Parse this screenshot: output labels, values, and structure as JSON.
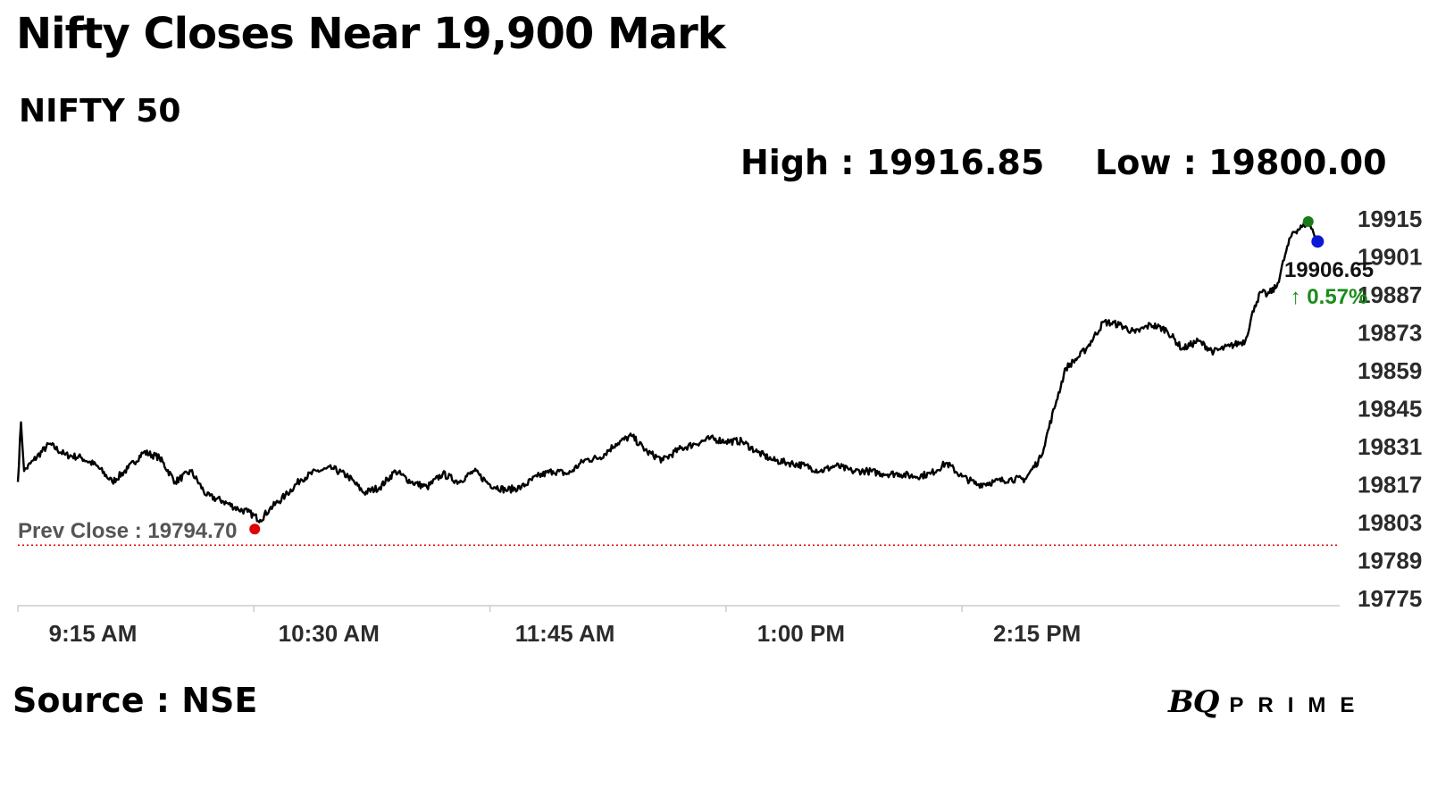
{
  "header": {
    "title": "Nifty Closes Near 19,900 Mark",
    "subtitle": "NIFTY 50",
    "high_label": "High : 19916.85",
    "low_label": "Low : 19800.00"
  },
  "footer": {
    "source": "Source : NSE",
    "logo_bq": "BQ",
    "logo_prime": "PRIME"
  },
  "chart_data": {
    "type": "line",
    "title": "NIFTY 50",
    "series": [
      {
        "points": [
          [
            "9:15",
            19818
          ],
          [
            "9:16",
            19840
          ],
          [
            "9:17",
            19822
          ],
          [
            "9:20",
            19826
          ],
          [
            "9:25",
            19832
          ],
          [
            "9:30",
            19828
          ],
          [
            "9:35",
            19827
          ],
          [
            "9:40",
            19824
          ],
          [
            "9:45",
            19818
          ],
          [
            "9:50",
            19823
          ],
          [
            "9:55",
            19829
          ],
          [
            "10:00",
            19827
          ],
          [
            "10:05",
            19818
          ],
          [
            "10:10",
            19822
          ],
          [
            "10:15",
            19813
          ],
          [
            "10:20",
            19811
          ],
          [
            "10:25",
            19808
          ],
          [
            "10:28",
            19807
          ],
          [
            "10:32",
            19804
          ],
          [
            "10:35",
            19808
          ],
          [
            "10:40",
            19813
          ],
          [
            "10:45",
            19819
          ],
          [
            "10:50",
            19822
          ],
          [
            "10:55",
            19823
          ],
          [
            "11:00",
            19820
          ],
          [
            "11:05",
            19814
          ],
          [
            "11:10",
            19816
          ],
          [
            "11:15",
            19822
          ],
          [
            "11:20",
            19818
          ],
          [
            "11:25",
            19816
          ],
          [
            "11:30",
            19821
          ],
          [
            "11:35",
            19818
          ],
          [
            "11:40",
            19822
          ],
          [
            "11:45",
            19817
          ],
          [
            "11:50",
            19815
          ],
          [
            "11:55",
            19816
          ],
          [
            "12:00",
            19820
          ],
          [
            "12:05",
            19822
          ],
          [
            "12:10",
            19821
          ],
          [
            "12:15",
            19826
          ],
          [
            "12:20",
            19827
          ],
          [
            "12:25",
            19832
          ],
          [
            "12:30",
            19835
          ],
          [
            "12:35",
            19829
          ],
          [
            "12:40",
            19826
          ],
          [
            "12:45",
            19830
          ],
          [
            "12:50",
            19832
          ],
          [
            "12:55",
            19834
          ],
          [
            "13:00",
            19833
          ],
          [
            "13:05",
            19833
          ],
          [
            "13:10",
            19829
          ],
          [
            "13:15",
            19826
          ],
          [
            "13:20",
            19825
          ],
          [
            "13:25",
            19824
          ],
          [
            "13:30",
            19822
          ],
          [
            "13:35",
            19824
          ],
          [
            "13:40",
            19822
          ],
          [
            "13:45",
            19822
          ],
          [
            "13:50",
            19821
          ],
          [
            "13:55",
            19821
          ],
          [
            "14:00",
            19820
          ],
          [
            "14:05",
            19821
          ],
          [
            "14:10",
            19825
          ],
          [
            "14:15",
            19820
          ],
          [
            "14:20",
            19817
          ],
          [
            "14:25",
            19818
          ],
          [
            "14:30",
            19819
          ],
          [
            "14:35",
            19819
          ],
          [
            "14:40",
            19827
          ],
          [
            "14:45",
            19848
          ],
          [
            "14:48",
            19860
          ],
          [
            "14:52",
            19864
          ],
          [
            "14:55",
            19868
          ],
          [
            "15:00",
            19877
          ],
          [
            "15:05",
            19876
          ],
          [
            "15:10",
            19873
          ],
          [
            "15:15",
            19876
          ],
          [
            "15:20",
            19874
          ],
          [
            "15:25",
            19867
          ],
          [
            "15:30",
            19870
          ],
          [
            "15:35",
            19866
          ],
          [
            "15:40",
            19868
          ],
          [
            "15:45",
            19870
          ],
          [
            "15:48",
            19883
          ],
          [
            "15:50",
            19888
          ],
          [
            "15:52",
            19887
          ],
          [
            "15:55",
            19890
          ],
          [
            "15:58",
            19903
          ],
          [
            "16:00",
            19910
          ],
          [
            "16:03",
            19912
          ],
          [
            "16:05",
            19914
          ],
          [
            "16:08",
            19906.65
          ]
        ]
      }
    ],
    "x_ticks": [
      "9:15 AM",
      "10:30 AM",
      "11:45 AM",
      "1:00 PM",
      "2:15 PM"
    ],
    "y_ticks": [
      "19915",
      "19901",
      "19887",
      "19873",
      "19859",
      "19845",
      "19831",
      "19817",
      "19803",
      "19789",
      "19775"
    ],
    "ylim": [
      19775,
      19915
    ],
    "prev_close": 19794.7,
    "prev_close_label": "Prev Close : 19794.70",
    "last_value": 19906.65,
    "last_value_label": "19906.65",
    "change_label": "↑ 0.57%",
    "high": 19916.85,
    "colors": {
      "line": "#000000",
      "prev_close": "#e00000",
      "high_marker": "#1a7a1a",
      "last_marker": "#0b18d6",
      "change": "#1a8c1a",
      "axis": "#cccccc"
    },
    "grid": false
  }
}
